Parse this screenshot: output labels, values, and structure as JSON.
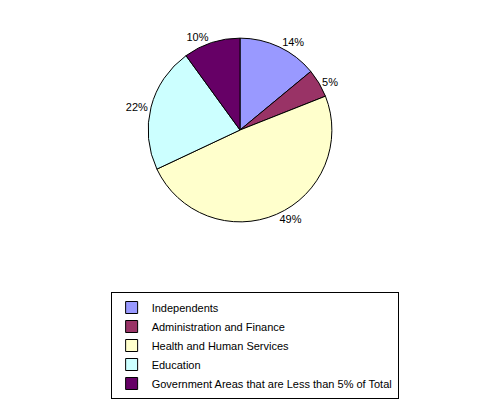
{
  "chart_data": {
    "type": "pie",
    "categories": [
      "Independents",
      "Administration and Finance",
      "Health and Human Services",
      "Education",
      "Government Areas that are Less than 5% of Total"
    ],
    "values": [
      14,
      5,
      49,
      22,
      10
    ],
    "value_labels": [
      "14%",
      "5%",
      "49%",
      "22%",
      "10%"
    ],
    "colors": [
      "#9999FF",
      "#993366",
      "#FFFFCC",
      "#CCFFFF",
      "#660066"
    ],
    "data_labels": true,
    "legend": "bottom"
  }
}
